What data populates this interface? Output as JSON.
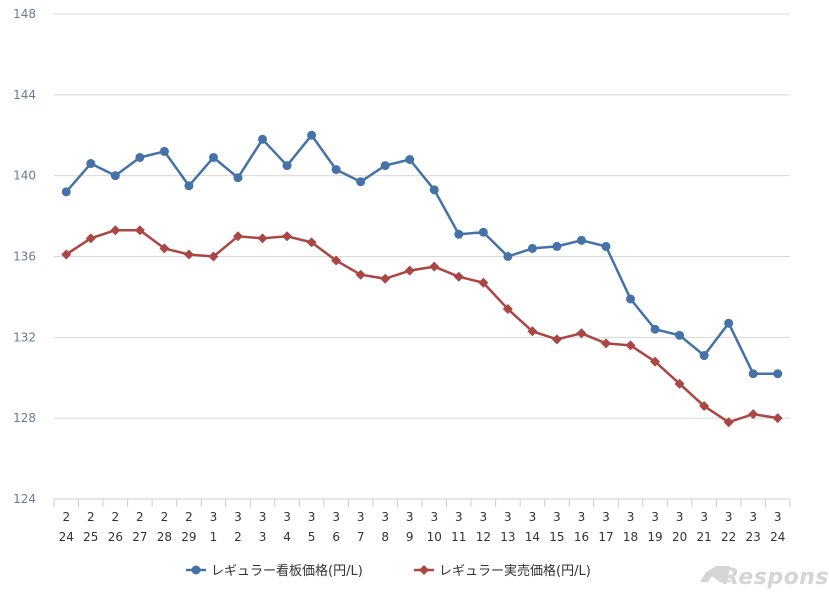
{
  "chart_data": {
    "type": "line",
    "categories": [
      [
        "2",
        "24"
      ],
      [
        "2",
        "25"
      ],
      [
        "2",
        "26"
      ],
      [
        "2",
        "27"
      ],
      [
        "2",
        "28"
      ],
      [
        "2",
        "29"
      ],
      [
        "3",
        "1"
      ],
      [
        "3",
        "2"
      ],
      [
        "3",
        "3"
      ],
      [
        "3",
        "4"
      ],
      [
        "3",
        "5"
      ],
      [
        "3",
        "6"
      ],
      [
        "3",
        "7"
      ],
      [
        "3",
        "8"
      ],
      [
        "3",
        "9"
      ],
      [
        "3",
        "10"
      ],
      [
        "3",
        "11"
      ],
      [
        "3",
        "12"
      ],
      [
        "3",
        "13"
      ],
      [
        "3",
        "14"
      ],
      [
        "3",
        "15"
      ],
      [
        "3",
        "16"
      ],
      [
        "3",
        "17"
      ],
      [
        "3",
        "18"
      ],
      [
        "3",
        "19"
      ],
      [
        "3",
        "20"
      ],
      [
        "3",
        "21"
      ],
      [
        "3",
        "22"
      ],
      [
        "3",
        "23"
      ],
      [
        "3",
        "24"
      ]
    ],
    "series": [
      {
        "name": "レギュラー看板価格(円/L)",
        "color": "#4572a7",
        "marker": "circle",
        "values": [
          139.2,
          140.6,
          140.0,
          140.9,
          141.2,
          139.5,
          140.9,
          139.9,
          141.8,
          140.5,
          142.0,
          140.3,
          139.7,
          140.5,
          140.8,
          139.3,
          137.1,
          137.2,
          136.0,
          136.4,
          136.5,
          136.8,
          136.5,
          133.9,
          132.4,
          132.1,
          131.1,
          132.7,
          130.2,
          130.2
        ]
      },
      {
        "name": "レギュラー実売価格(円/L)",
        "color": "#aa4643",
        "marker": "diamond",
        "values": [
          136.1,
          136.9,
          137.3,
          137.3,
          136.4,
          136.1,
          136.0,
          137.0,
          136.9,
          137.0,
          136.7,
          135.8,
          135.1,
          134.9,
          135.3,
          135.5,
          135.0,
          134.7,
          133.4,
          132.3,
          131.9,
          132.2,
          131.7,
          131.6,
          130.8,
          129.7,
          128.6,
          127.8,
          128.2,
          128.0
        ]
      }
    ],
    "ylim": [
      124,
      148
    ],
    "yticks": [
      "124",
      "128",
      "132",
      "136",
      "140",
      "144",
      "148"
    ],
    "grid": true,
    "legend_position": "bottom-center",
    "title": "",
    "xlabel": "",
    "ylabel": ""
  },
  "watermark": {
    "text": "Response."
  }
}
